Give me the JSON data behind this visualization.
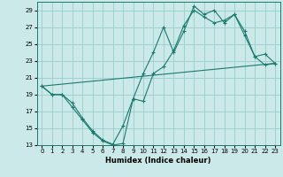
{
  "xlabel": "Humidex (Indice chaleur)",
  "bg_color": "#cce9e9",
  "grid_color": "#99cccc",
  "line_color": "#1a7a6e",
  "xlim": [
    -0.5,
    23.5
  ],
  "ylim": [
    13,
    30
  ],
  "yticks": [
    13,
    15,
    17,
    19,
    21,
    23,
    25,
    27,
    29
  ],
  "xticks": [
    0,
    1,
    2,
    3,
    4,
    5,
    6,
    7,
    8,
    9,
    10,
    11,
    12,
    13,
    14,
    15,
    16,
    17,
    18,
    19,
    20,
    21,
    22,
    23
  ],
  "line1_x": [
    0,
    1,
    2,
    3,
    4,
    5,
    6,
    7,
    8,
    9,
    10,
    11,
    12,
    13,
    14,
    15,
    16,
    17,
    18,
    19,
    20,
    21,
    22,
    23
  ],
  "line1_y": [
    20.0,
    19.0,
    19.0,
    17.5,
    16.0,
    14.5,
    13.5,
    13.0,
    13.2,
    18.5,
    21.5,
    24.0,
    27.0,
    24.0,
    26.5,
    29.5,
    28.5,
    29.0,
    27.5,
    28.5,
    26.5,
    23.5,
    23.8,
    22.7
  ],
  "line2_x": [
    0,
    1,
    2,
    3,
    4,
    5,
    6,
    7,
    8,
    9,
    10,
    11,
    12,
    13,
    14,
    15,
    16,
    17,
    18,
    19,
    20,
    21,
    22,
    23
  ],
  "line2_y": [
    20.0,
    19.0,
    19.0,
    18.0,
    16.2,
    14.7,
    13.6,
    13.1,
    15.3,
    18.5,
    18.2,
    21.5,
    22.3,
    24.2,
    27.2,
    29.0,
    28.2,
    27.5,
    27.8,
    28.5,
    26.0,
    23.5,
    22.5,
    22.7
  ],
  "line3_x": [
    0,
    23
  ],
  "line3_y": [
    20.0,
    22.7
  ]
}
